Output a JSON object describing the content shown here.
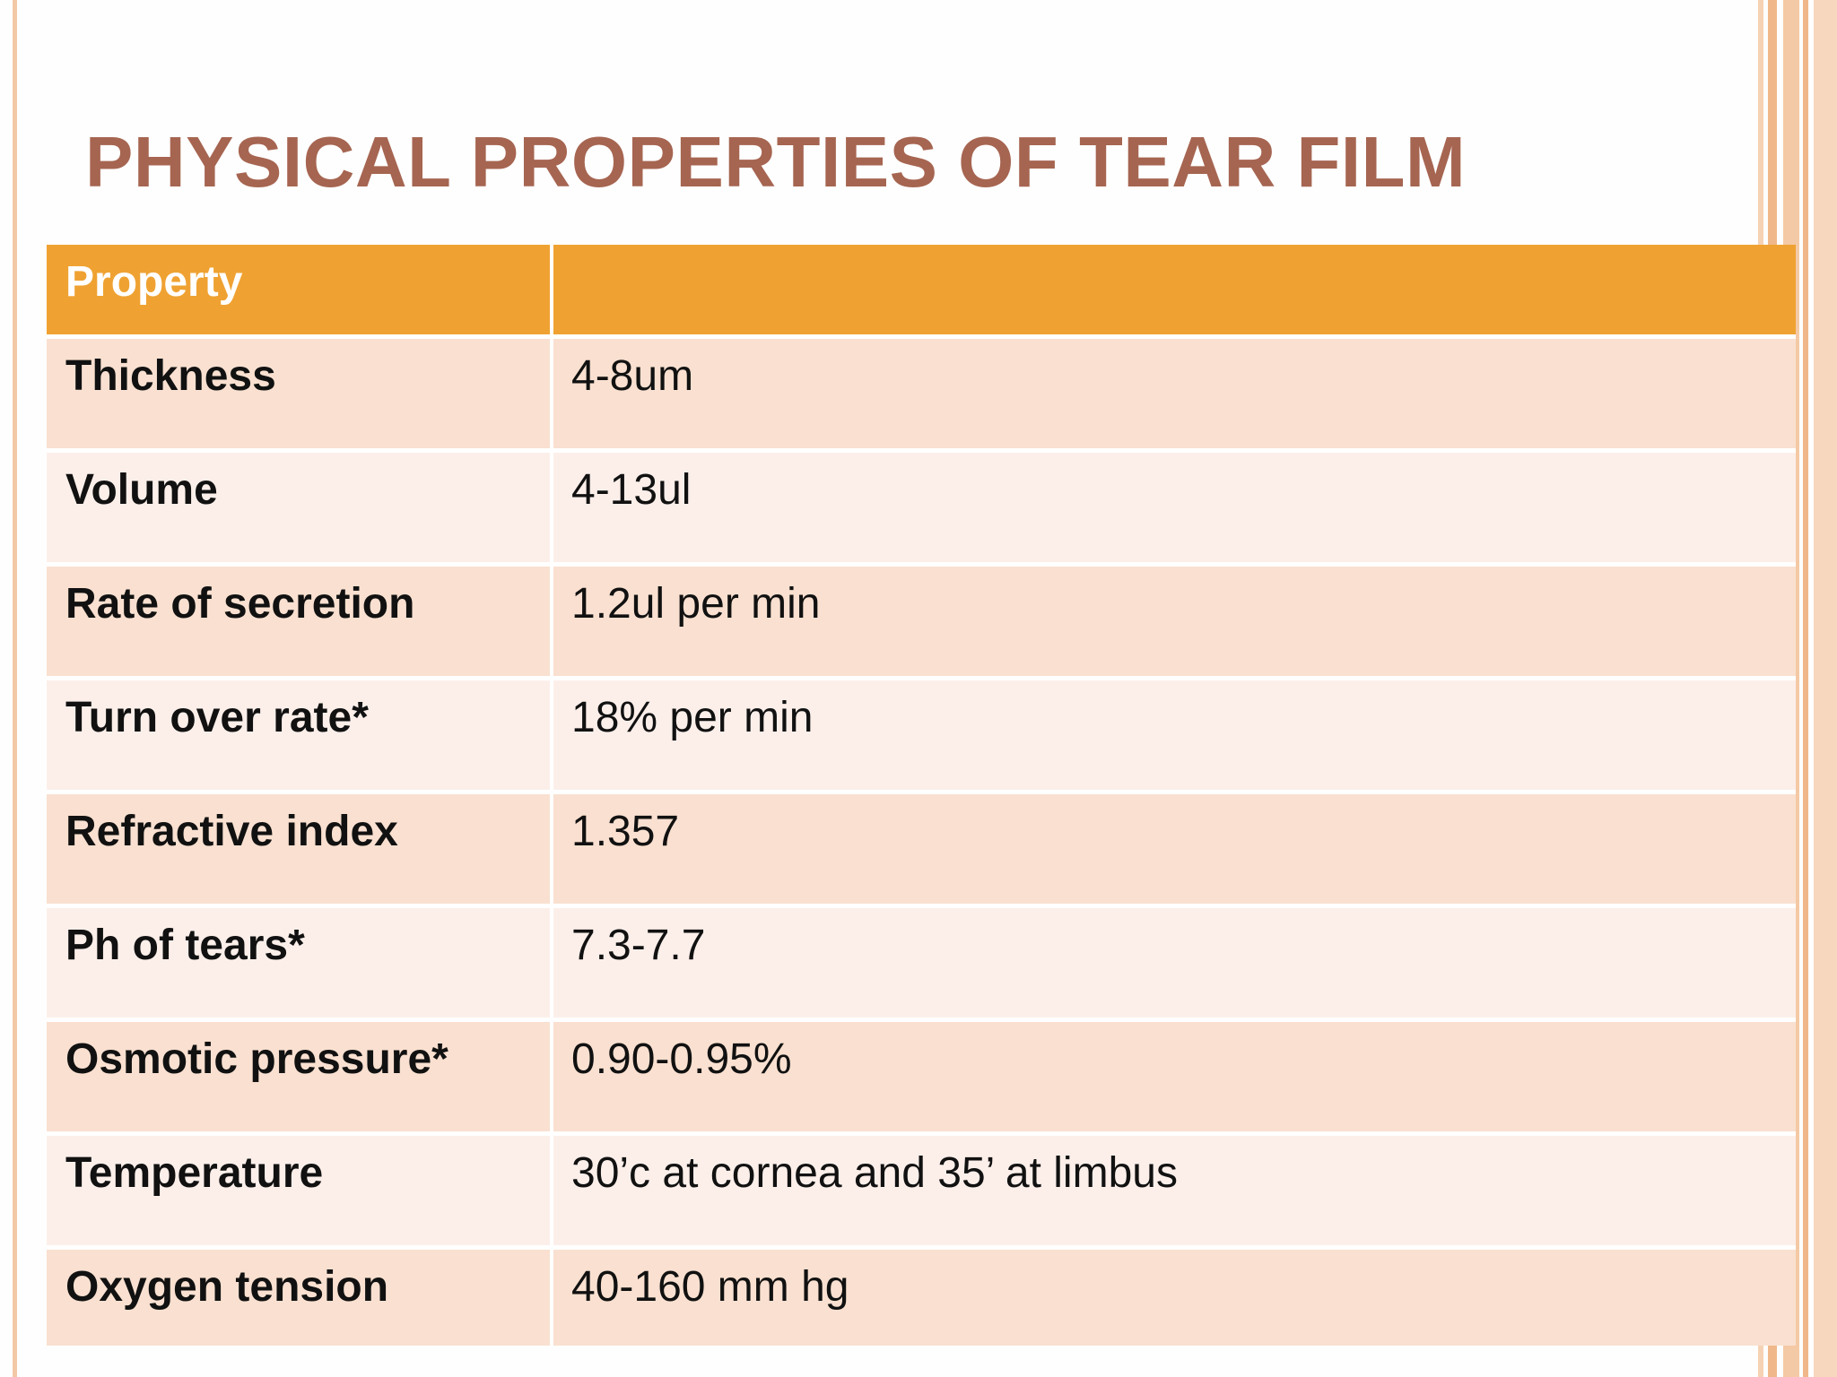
{
  "slide": {
    "title": "PHYSICAL PROPERTIES OF TEAR FILM"
  },
  "table": {
    "headers": [
      "Property",
      ""
    ],
    "rows": [
      {
        "property": "Thickness",
        "value": "4-8um"
      },
      {
        "property": "Volume",
        "value": "4-13ul"
      },
      {
        "property": "Rate of secretion",
        "value": "1.2ul per min"
      },
      {
        "property": "Turn over rate*",
        "value": "18% per min"
      },
      {
        "property": "Refractive index",
        "value": "1.357"
      },
      {
        "property": "Ph of tears*",
        "value": "7.3-7.7"
      },
      {
        "property": "Osmotic pressure*",
        "value": "0.90-0.95%"
      },
      {
        "property": "Temperature",
        "value": "30’c at cornea and 35’ at limbus"
      },
      {
        "property": "Oxygen tension",
        "value": "40-160 mm hg"
      }
    ]
  },
  "colors": {
    "title": "#a66551",
    "header_bg": "#efa232",
    "row_odd_bg": "#f9e0d0",
    "row_even_bg": "#fcefea",
    "accent_stripe": "#f0b88a"
  }
}
